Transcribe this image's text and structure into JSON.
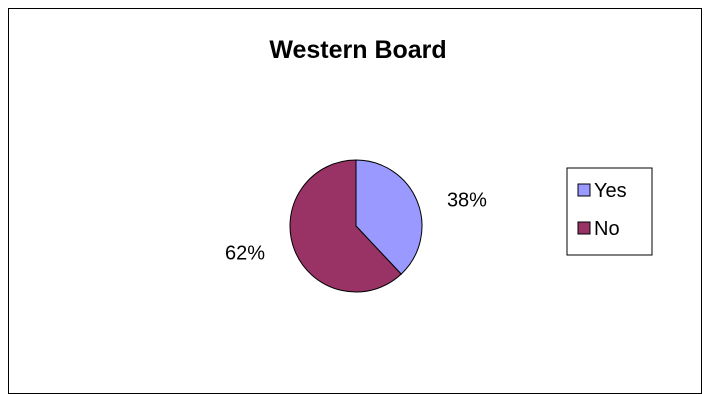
{
  "chart_data": {
    "type": "pie",
    "title": "Western Board",
    "categories": [
      "Yes",
      "No"
    ],
    "values": [
      38,
      62
    ],
    "data_labels": [
      "38%",
      "62%"
    ],
    "colors": [
      "#9999ff",
      "#993366"
    ],
    "legend": {
      "position": "right",
      "entries": [
        "Yes",
        "No"
      ]
    }
  }
}
